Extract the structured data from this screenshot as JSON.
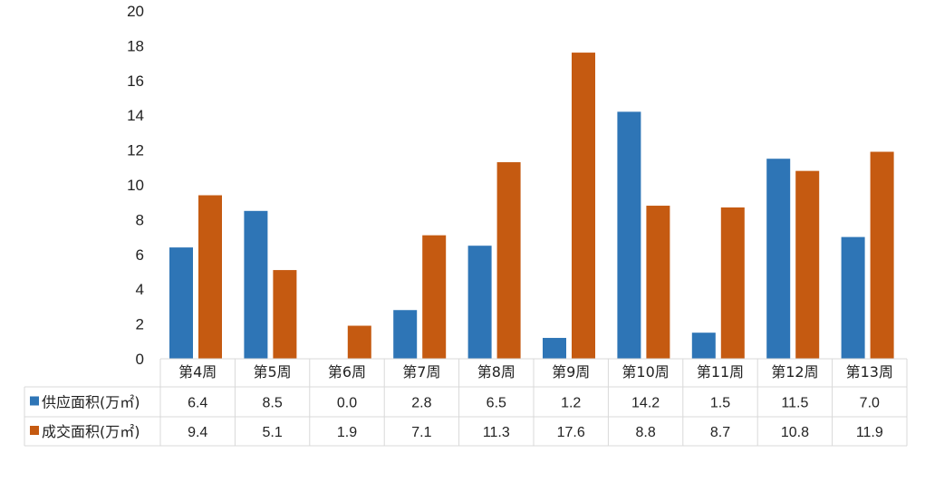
{
  "chart_data": {
    "type": "bar",
    "categories": [
      "第4周",
      "第5周",
      "第6周",
      "第7周",
      "第8周",
      "第9周",
      "第10周",
      "第11周",
      "第12周",
      "第13周"
    ],
    "series": [
      {
        "name": "供应面积(万㎡)",
        "color": "#2E75B6",
        "values": [
          6.4,
          8.5,
          0.0,
          2.8,
          6.5,
          1.2,
          14.2,
          1.5,
          11.5,
          7.0
        ],
        "labels": [
          "6.4",
          "8.5",
          "0.0",
          "2.8",
          "6.5",
          "1.2",
          "14.2",
          "1.5",
          "11.5",
          "7.0"
        ]
      },
      {
        "name": "成交面积(万㎡)",
        "color": "#C55A11",
        "values": [
          9.4,
          5.1,
          1.9,
          7.1,
          11.3,
          17.6,
          8.8,
          8.7,
          10.8,
          11.9
        ],
        "labels": [
          "9.4",
          "5.1",
          "1.9",
          "7.1",
          "11.3",
          "17.6",
          "8.8",
          "8.7",
          "10.8",
          "11.9"
        ]
      }
    ],
    "y_ticks": [
      "0",
      "2",
      "4",
      "6",
      "8",
      "10",
      "12",
      "14",
      "16",
      "18",
      "20"
    ],
    "ylim": [
      0,
      20
    ],
    "grid": false,
    "legend": "data-table-left"
  }
}
